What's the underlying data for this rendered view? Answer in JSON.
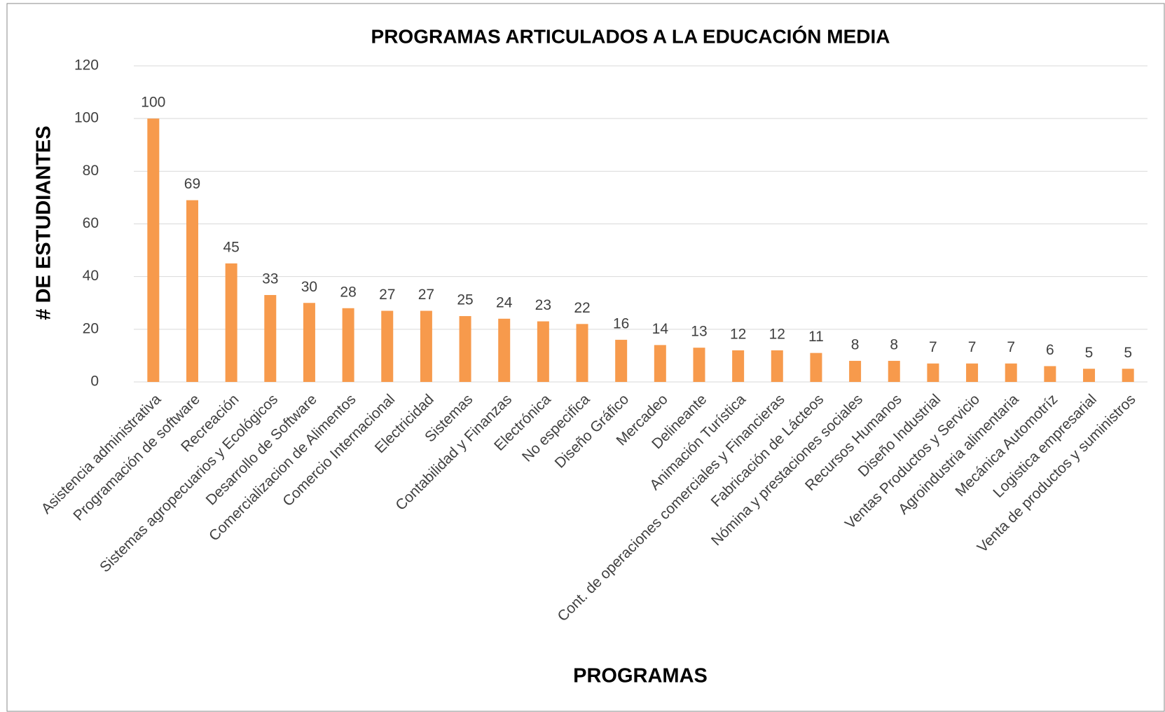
{
  "chart_data": {
    "type": "bar",
    "title": "PROGRAMAS ARTICULADOS A LA EDUCACIÓN MEDIA",
    "x_label": "PROGRAMAS",
    "y_label": "# DE ESTUDIANTES",
    "categories": [
      "Asistencia administrativa",
      "Programación de software",
      "Recreación",
      "Sistemas agropecuarios y Ecológicos",
      "Desarrollo de Software",
      "Comercializacion de Alimentos",
      "Comercio Internacional",
      "Electricidad",
      "Sistemas",
      "Contabilidad y Finanzas",
      "Electrónica",
      "No especifica",
      "Diseño Gráfico",
      "Mercadeo",
      "Delineante",
      "Animación Turística",
      "Cont. de operaciones comerciales y Financieras",
      "Fabricación de Lácteos",
      "Nómina y prestaciones sociales",
      "Recursos Humanos",
      "Diseño Industrial",
      "Ventas Productos y Servicio",
      "Agroindustria alimentaria",
      "Mecánica Automotríz",
      "Logistica empresarial",
      "Venta de productos y suministros"
    ],
    "values": [
      100,
      69,
      45,
      33,
      30,
      28,
      27,
      27,
      25,
      24,
      23,
      22,
      16,
      14,
      13,
      12,
      12,
      11,
      8,
      8,
      7,
      7,
      7,
      6,
      5,
      5
    ],
    "color": "#f79a4c",
    "ylim": [
      0,
      120
    ],
    "yticks": [
      0,
      20,
      40,
      60,
      80,
      100,
      120
    ],
    "grid": true
  }
}
